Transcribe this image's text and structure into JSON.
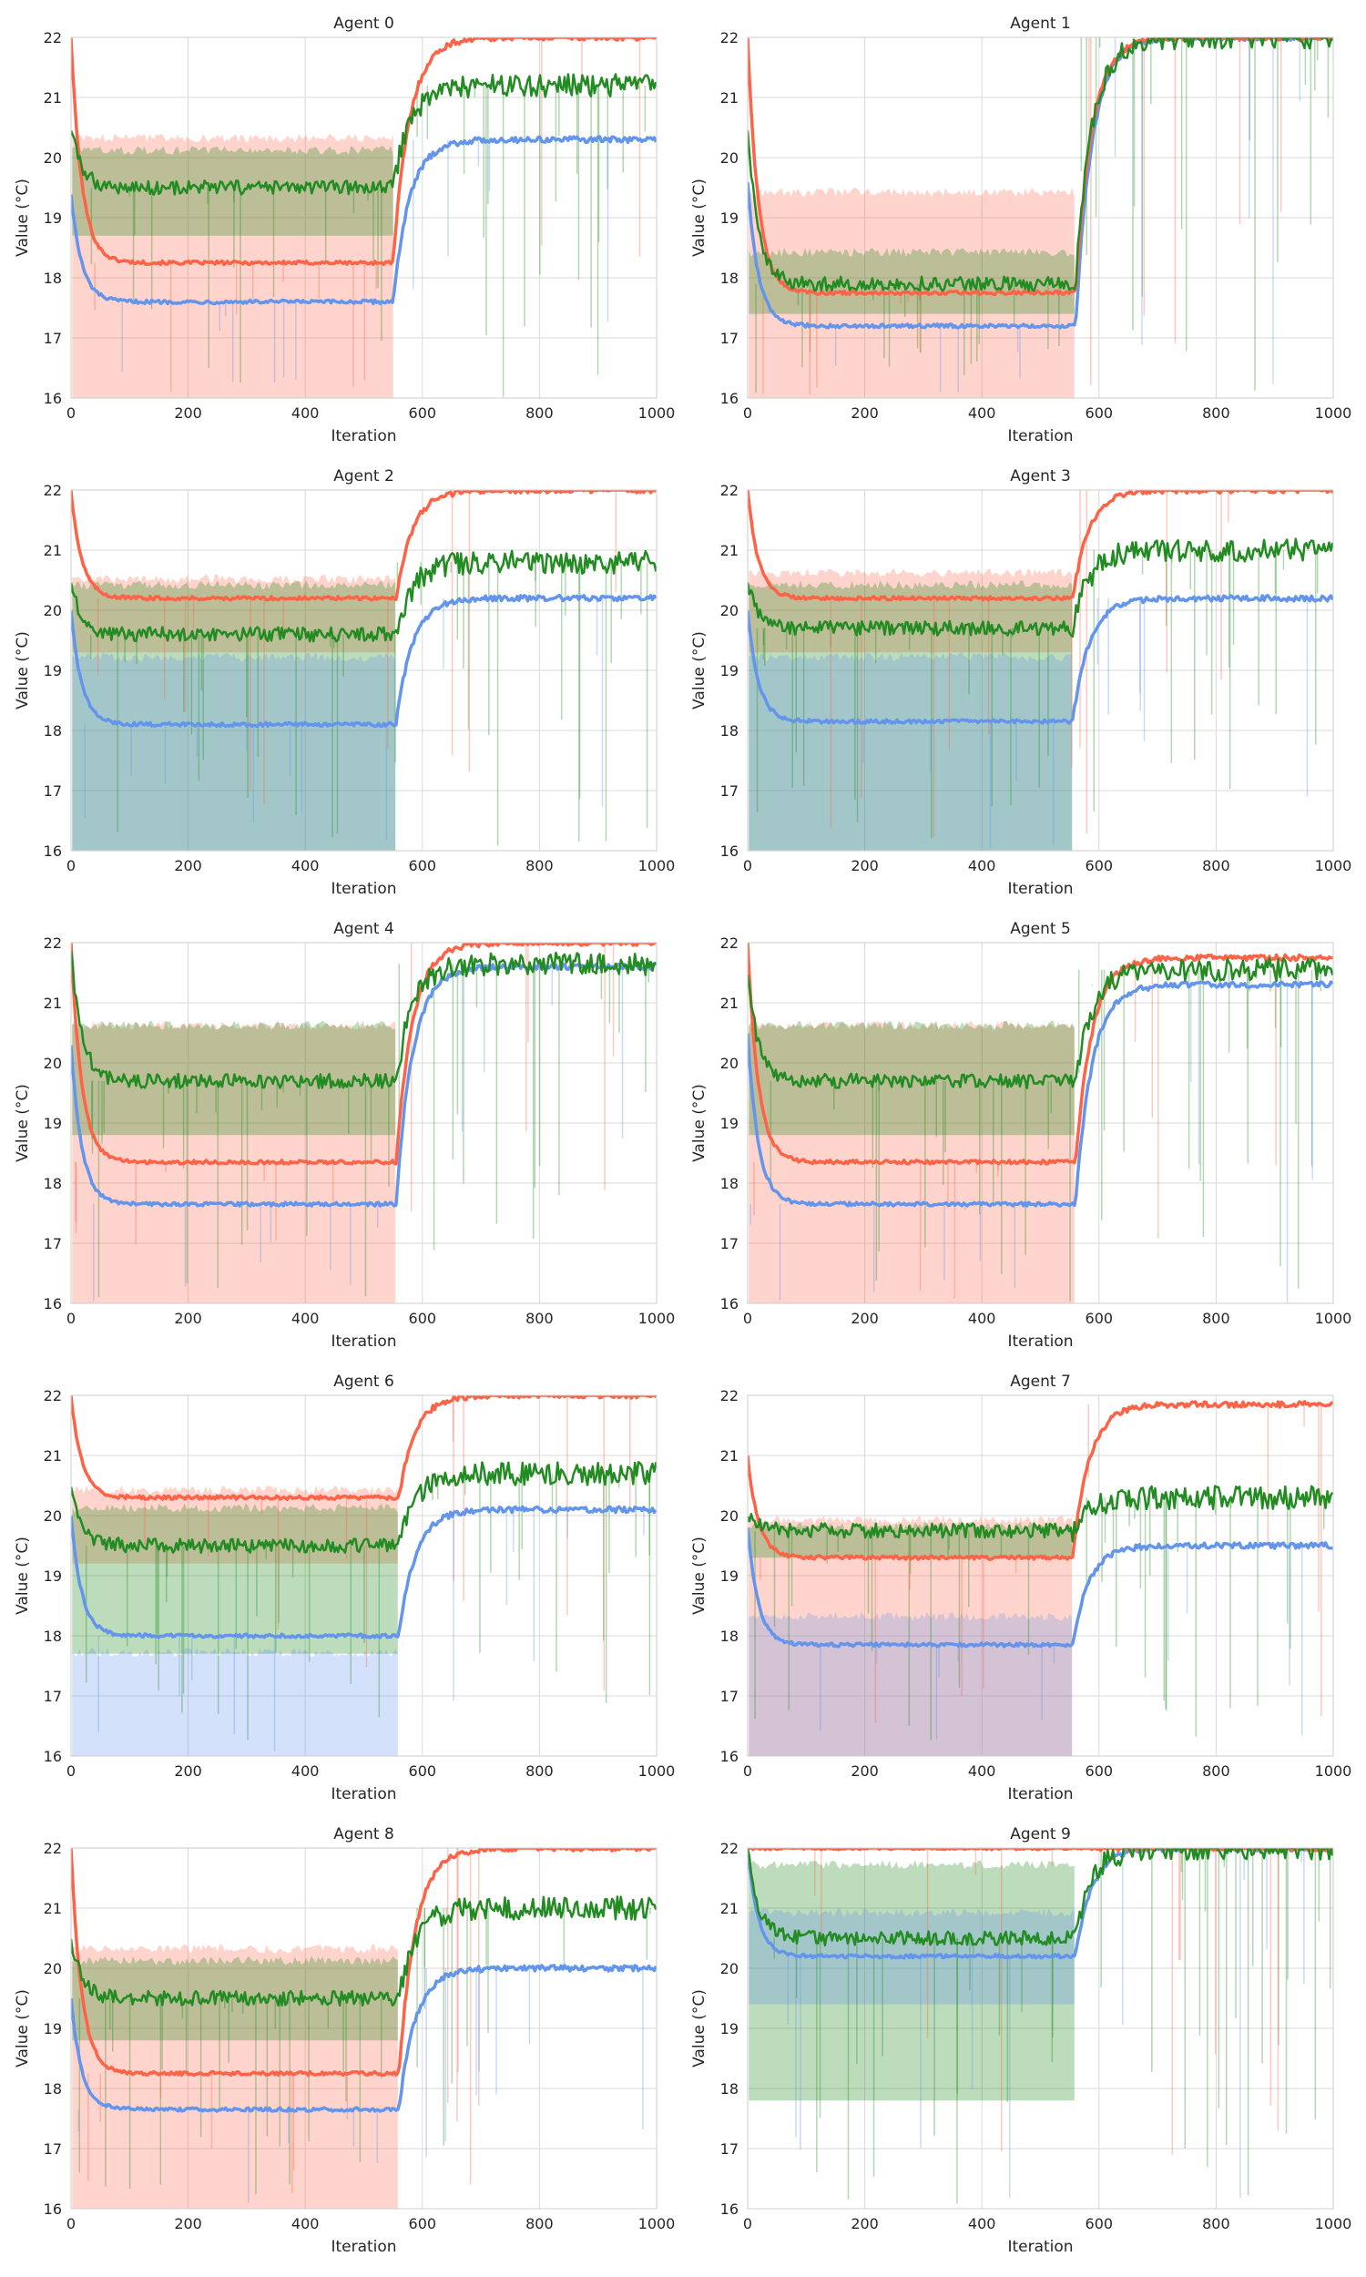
{
  "figure": {
    "colors": {
      "red": "#FF6347",
      "blue": "#6495ED",
      "green": "#228B22",
      "grid": "#d9d9d9",
      "spine": "#cccccc",
      "text": "#262626"
    }
  },
  "chart_data": [
    {
      "type": "line",
      "title": "Agent 0",
      "xlabel": "Iteration",
      "ylabel": "Value (°C)",
      "xlim": [
        0,
        1000
      ],
      "ylim": [
        16,
        22
      ],
      "xticks": [
        0,
        200,
        400,
        600,
        800,
        1000
      ],
      "yticks": [
        16,
        17,
        18,
        19,
        20,
        21,
        22
      ],
      "grid": true,
      "switch": 550,
      "phases": {
        "red": {
          "start": 22.0,
          "plateau": 18.25,
          "end": 22.0
        },
        "blue": {
          "start": 19.4,
          "plateau": 17.6,
          "end": 20.3
        },
        "green": {
          "start": 20.5,
          "plateau": 19.5,
          "end": 21.2
        }
      },
      "bands": {
        "red": {
          "phase1": [
            16.0,
            20.4
          ]
        },
        "green": {
          "phase1": [
            18.7,
            20.2
          ]
        }
      }
    },
    {
      "type": "line",
      "title": "Agent 1",
      "xlabel": "Iteration",
      "ylabel": "Value (°C)",
      "xlim": [
        0,
        1000
      ],
      "ylim": [
        16,
        22
      ],
      "xticks": [
        0,
        200,
        400,
        600,
        800,
        1000
      ],
      "yticks": [
        16,
        17,
        18,
        19,
        20,
        21,
        22
      ],
      "grid": true,
      "switch": 560,
      "phases": {
        "red": {
          "start": 22.0,
          "plateau": 17.75,
          "end": 22.0
        },
        "blue": {
          "start": 19.6,
          "plateau": 17.2,
          "end": 22.0
        },
        "green": {
          "start": 20.5,
          "plateau": 17.9,
          "end": 22.0
        }
      },
      "bands": {
        "red": {
          "phase1": [
            16.0,
            19.5
          ]
        },
        "green": {
          "phase1": [
            17.4,
            18.5
          ]
        }
      }
    },
    {
      "type": "line",
      "title": "Agent 2",
      "xlabel": "Iteration",
      "ylabel": "Value (°C)",
      "xlim": [
        0,
        1000
      ],
      "ylim": [
        16,
        22
      ],
      "xticks": [
        0,
        200,
        400,
        600,
        800,
        1000
      ],
      "yticks": [
        16,
        17,
        18,
        19,
        20,
        21,
        22
      ],
      "grid": true,
      "switch": 555,
      "phases": {
        "red": {
          "start": 22.0,
          "plateau": 20.2,
          "end": 22.0
        },
        "blue": {
          "start": 20.0,
          "plateau": 18.1,
          "end": 20.2
        },
        "green": {
          "start": 20.5,
          "plateau": 19.6,
          "end": 20.8
        }
      },
      "bands": {
        "red": {
          "phase1": [
            19.3,
            20.6
          ]
        },
        "green": {
          "phase1": [
            16.0,
            20.5
          ]
        },
        "blue": {
          "phase1": [
            16.0,
            19.3
          ]
        }
      }
    },
    {
      "type": "line",
      "title": "Agent 3",
      "xlabel": "Iteration",
      "ylabel": "Value (°C)",
      "xlim": [
        0,
        1000
      ],
      "ylim": [
        16,
        22
      ],
      "xticks": [
        0,
        200,
        400,
        600,
        800,
        1000
      ],
      "yticks": [
        16,
        17,
        18,
        19,
        20,
        21,
        22
      ],
      "grid": true,
      "switch": 555,
      "phases": {
        "red": {
          "start": 22.0,
          "plateau": 20.2,
          "end": 22.0
        },
        "blue": {
          "start": 20.0,
          "plateau": 18.15,
          "end": 20.2
        },
        "green": {
          "start": 20.5,
          "plateau": 19.7,
          "end": 21.0
        }
      },
      "bands": {
        "red": {
          "phase1": [
            19.3,
            20.7
          ]
        },
        "green": {
          "phase1": [
            16.0,
            20.5
          ]
        },
        "blue": {
          "phase1": [
            16.0,
            19.3
          ]
        }
      }
    },
    {
      "type": "line",
      "title": "Agent 4",
      "xlabel": "Iteration",
      "ylabel": "Value (°C)",
      "xlim": [
        0,
        1000
      ],
      "ylim": [
        16,
        22
      ],
      "xticks": [
        0,
        200,
        400,
        600,
        800,
        1000
      ],
      "yticks": [
        16,
        17,
        18,
        19,
        20,
        21,
        22
      ],
      "grid": true,
      "switch": 555,
      "phases": {
        "red": {
          "start": 22.0,
          "plateau": 18.35,
          "end": 22.0
        },
        "blue": {
          "start": 20.3,
          "plateau": 17.65,
          "end": 21.6
        },
        "green": {
          "start": 21.9,
          "plateau": 19.7,
          "end": 21.65
        }
      },
      "bands": {
        "red": {
          "phase1": [
            16.0,
            20.7
          ]
        },
        "green": {
          "phase1": [
            18.8,
            20.7
          ]
        }
      }
    },
    {
      "type": "line",
      "title": "Agent 5",
      "xlabel": "Iteration",
      "ylabel": "Value (°C)",
      "xlim": [
        0,
        1000
      ],
      "ylim": [
        16,
        22
      ],
      "xticks": [
        0,
        200,
        400,
        600,
        800,
        1000
      ],
      "yticks": [
        16,
        17,
        18,
        19,
        20,
        21,
        22
      ],
      "grid": true,
      "switch": 560,
      "phases": {
        "red": {
          "start": 22.0,
          "plateau": 18.35,
          "end": 21.75
        },
        "blue": {
          "start": 20.5,
          "plateau": 17.65,
          "end": 21.3
        },
        "green": {
          "start": 21.5,
          "plateau": 19.7,
          "end": 21.55
        }
      },
      "bands": {
        "red": {
          "phase1": [
            16.0,
            20.7
          ]
        },
        "green": {
          "phase1": [
            18.8,
            20.7
          ]
        }
      }
    },
    {
      "type": "line",
      "title": "Agent 6",
      "xlabel": "Iteration",
      "ylabel": "Value (°C)",
      "xlim": [
        0,
        1000
      ],
      "ylim": [
        16,
        22
      ],
      "xticks": [
        0,
        200,
        400,
        600,
        800,
        1000
      ],
      "yticks": [
        16,
        17,
        18,
        19,
        20,
        21,
        22
      ],
      "grid": true,
      "switch": 560,
      "phases": {
        "red": {
          "start": 22.0,
          "plateau": 20.3,
          "end": 22.0
        },
        "blue": {
          "start": 20.0,
          "plateau": 18.0,
          "end": 20.1
        },
        "green": {
          "start": 20.5,
          "plateau": 19.5,
          "end": 20.7
        }
      },
      "bands": {
        "red": {
          "phase1": [
            19.2,
            20.5
          ]
        },
        "green": {
          "phase1": [
            17.7,
            20.2
          ]
        },
        "blue": {
          "phase1": [
            16.0,
            17.8
          ]
        }
      }
    },
    {
      "type": "line",
      "title": "Agent 7",
      "xlabel": "Iteration",
      "ylabel": "Value (°C)",
      "xlim": [
        0,
        1000
      ],
      "ylim": [
        16,
        22
      ],
      "xticks": [
        0,
        200,
        400,
        600,
        800,
        1000
      ],
      "yticks": [
        16,
        17,
        18,
        19,
        20,
        21,
        22
      ],
      "grid": true,
      "switch": 555,
      "phases": {
        "red": {
          "start": 21.0,
          "plateau": 19.3,
          "end": 21.85
        },
        "blue": {
          "start": 19.8,
          "plateau": 17.85,
          "end": 19.5
        },
        "green": {
          "start": 20.0,
          "plateau": 19.75,
          "end": 20.3
        }
      },
      "bands": {
        "red": {
          "phase1": [
            16.0,
            20.0
          ]
        },
        "green": {
          "phase1": [
            19.3,
            19.9
          ]
        },
        "blue": {
          "phase1": [
            16.0,
            18.4
          ]
        }
      }
    },
    {
      "type": "line",
      "title": "Agent 8",
      "xlabel": "Iteration",
      "ylabel": "Value (°C)",
      "xlim": [
        0,
        1000
      ],
      "ylim": [
        16,
        22
      ],
      "xticks": [
        0,
        200,
        400,
        600,
        800,
        1000
      ],
      "yticks": [
        16,
        17,
        18,
        19,
        20,
        21,
        22
      ],
      "grid": true,
      "switch": 560,
      "phases": {
        "red": {
          "start": 22.0,
          "plateau": 18.25,
          "end": 22.0
        },
        "blue": {
          "start": 19.5,
          "plateau": 17.65,
          "end": 20.0
        },
        "green": {
          "start": 20.5,
          "plateau": 19.5,
          "end": 21.0
        }
      },
      "bands": {
        "red": {
          "phase1": [
            16.0,
            20.4
          ]
        },
        "green": {
          "phase1": [
            18.8,
            20.2
          ]
        }
      }
    },
    {
      "type": "line",
      "title": "Agent 9",
      "xlabel": "Iteration",
      "ylabel": "Value (°C)",
      "xlim": [
        0,
        1000
      ],
      "ylim": [
        16,
        22
      ],
      "xticks": [
        0,
        200,
        400,
        600,
        800,
        1000
      ],
      "yticks": [
        16,
        17,
        18,
        19,
        20,
        21,
        22
      ],
      "grid": true,
      "switch": 560,
      "phases": {
        "red": {
          "start": 22.0,
          "plateau": 22.0,
          "end": 22.0
        },
        "blue": {
          "start": 22.0,
          "plateau": 20.2,
          "end": 22.0
        },
        "green": {
          "start": 22.0,
          "plateau": 20.5,
          "end": 22.0
        }
      },
      "bands": {
        "green": {
          "phase1": [
            17.8,
            21.8
          ]
        },
        "blue": {
          "phase1": [
            19.4,
            21.0
          ]
        }
      }
    }
  ]
}
